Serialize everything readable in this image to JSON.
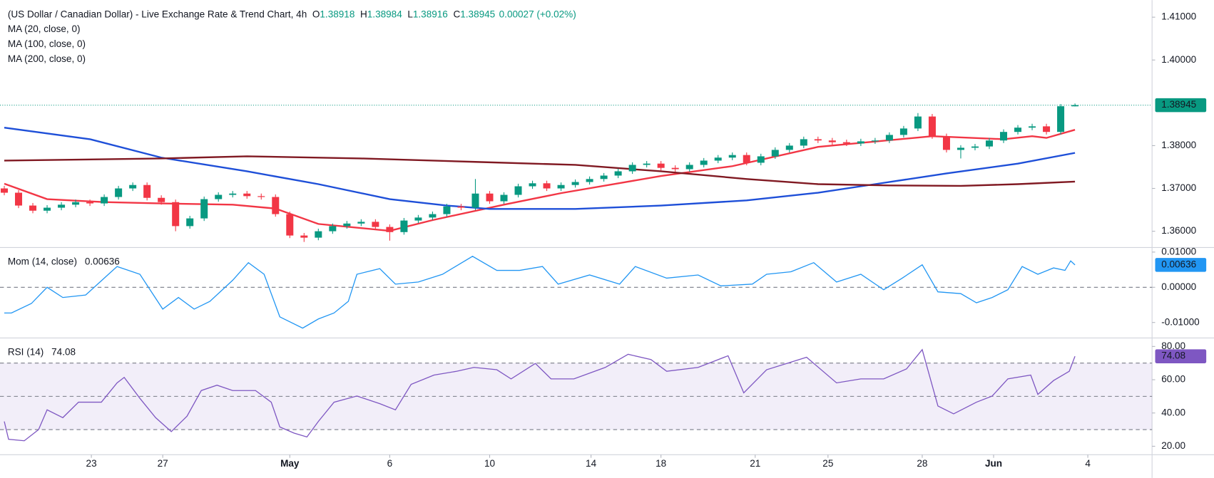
{
  "chart_data": [
    {
      "type": "candlestick",
      "title": "(US Dollar / Canadian Dollar) - Live Exchange Rate & Trend Chart, 4h",
      "ohlc_labels": [
        "O",
        "H",
        "L",
        "C"
      ],
      "change": "0.00027 (+0.02%)",
      "up_color": "#089981",
      "down_color": "#f23645",
      "xlim": [
        -0.3,
        80.4
      ],
      "xticks": [
        {
          "value": 6.1,
          "label": "23"
        },
        {
          "value": 11.1,
          "label": "27"
        },
        {
          "value": 20.0,
          "label": "May"
        },
        {
          "value": 27.0,
          "label": "6"
        },
        {
          "value": 34.0,
          "label": "10"
        },
        {
          "value": 41.1,
          "label": "14"
        },
        {
          "value": 46.0,
          "label": "18"
        },
        {
          "value": 52.6,
          "label": "21"
        },
        {
          "value": 57.7,
          "label": "25"
        },
        {
          "value": 64.3,
          "label": "28"
        },
        {
          "value": 69.3,
          "label": "Jun"
        },
        {
          "value": 75.9,
          "label": "4"
        }
      ],
      "ylim": [
        1.3562,
        1.414
      ],
      "yticks": [
        {
          "value": 1.41,
          "label": "1.41000"
        },
        {
          "value": 1.4,
          "label": "1.40000"
        },
        {
          "value": 1.38,
          "label": "1.38000"
        },
        {
          "value": 1.37,
          "label": "1.37000"
        },
        {
          "value": 1.36,
          "label": "1.36000"
        }
      ],
      "open": [
        1.37,
        1.369,
        1.366,
        1.3648,
        1.3655,
        1.3662,
        1.3668,
        1.3665,
        1.368,
        1.37,
        1.3708,
        1.3678,
        1.3668,
        1.3612,
        1.363,
        1.3675,
        1.3685,
        1.3688,
        1.3682,
        1.368,
        1.364,
        1.359,
        1.3585,
        1.36,
        1.3612,
        1.3618,
        1.3622,
        1.361,
        1.3598,
        1.3625,
        1.3632,
        1.364,
        1.3658,
        1.3655,
        1.3688,
        1.367,
        1.3685,
        1.3705,
        1.3712,
        1.37,
        1.3708,
        1.3715,
        1.3722,
        1.373,
        1.374,
        1.3755,
        1.3758,
        1.3748,
        1.3745,
        1.3755,
        1.3765,
        1.3772,
        1.3778,
        1.376,
        1.3775,
        1.379,
        1.38,
        1.3815,
        1.3812,
        1.3808,
        1.3805,
        1.381,
        1.3812,
        1.3825,
        1.384,
        1.3868,
        1.3822,
        1.379,
        1.3795,
        1.3798,
        1.3812,
        1.3832,
        1.3842,
        1.3845,
        1.3832,
        1.38918
      ],
      "high": [
        1.3706,
        1.3696,
        1.3666,
        1.3661,
        1.3668,
        1.3674,
        1.3674,
        1.3686,
        1.3706,
        1.3714,
        1.3714,
        1.3684,
        1.3674,
        1.3636,
        1.3681,
        1.3691,
        1.3694,
        1.3694,
        1.3688,
        1.3686,
        1.3646,
        1.3596,
        1.3606,
        1.3618,
        1.3624,
        1.3628,
        1.3628,
        1.3616,
        1.3631,
        1.3638,
        1.3646,
        1.3664,
        1.3664,
        1.3722,
        1.3694,
        1.3691,
        1.3711,
        1.3718,
        1.3718,
        1.3714,
        1.3721,
        1.3728,
        1.3736,
        1.3746,
        1.3761,
        1.3764,
        1.3764,
        1.3754,
        1.3761,
        1.3771,
        1.3778,
        1.3784,
        1.3784,
        1.3781,
        1.3796,
        1.3806,
        1.3821,
        1.3821,
        1.3818,
        1.3814,
        1.3816,
        1.3818,
        1.3831,
        1.3846,
        1.3876,
        1.3874,
        1.3828,
        1.3801,
        1.3804,
        1.3818,
        1.3838,
        1.3848,
        1.3851,
        1.3851,
        1.3897,
        1.38984
      ],
      "low": [
        1.3684,
        1.3654,
        1.3642,
        1.3642,
        1.3649,
        1.3656,
        1.3659,
        1.3659,
        1.3674,
        1.3694,
        1.3672,
        1.3662,
        1.36,
        1.3606,
        1.3624,
        1.3669,
        1.3679,
        1.3676,
        1.3674,
        1.3634,
        1.3584,
        1.3575,
        1.3579,
        1.3594,
        1.3606,
        1.3612,
        1.3604,
        1.3578,
        1.3592,
        1.3619,
        1.3626,
        1.3634,
        1.3649,
        1.3649,
        1.3664,
        1.3664,
        1.3679,
        1.3699,
        1.3694,
        1.3694,
        1.3702,
        1.3709,
        1.3716,
        1.3724,
        1.3734,
        1.3749,
        1.3742,
        1.3739,
        1.3739,
        1.3749,
        1.3759,
        1.3766,
        1.3754,
        1.3754,
        1.3769,
        1.3784,
        1.3794,
        1.3806,
        1.3802,
        1.3799,
        1.3799,
        1.3804,
        1.3806,
        1.3819,
        1.3834,
        1.3816,
        1.3784,
        1.377,
        1.3789,
        1.3792,
        1.3806,
        1.3826,
        1.3836,
        1.3826,
        1.3826,
        1.38916
      ],
      "close": [
        1.369,
        1.366,
        1.3648,
        1.3655,
        1.3662,
        1.3668,
        1.3665,
        1.368,
        1.37,
        1.3708,
        1.3678,
        1.3668,
        1.3612,
        1.363,
        1.3675,
        1.3685,
        1.3688,
        1.3682,
        1.368,
        1.364,
        1.359,
        1.3585,
        1.36,
        1.3612,
        1.3618,
        1.3622,
        1.361,
        1.3598,
        1.3625,
        1.3632,
        1.364,
        1.3658,
        1.3655,
        1.3688,
        1.367,
        1.3685,
        1.3705,
        1.3712,
        1.37,
        1.3708,
        1.3715,
        1.3722,
        1.373,
        1.374,
        1.3755,
        1.3758,
        1.3748,
        1.3745,
        1.3755,
        1.3765,
        1.3772,
        1.3778,
        1.376,
        1.3775,
        1.379,
        1.38,
        1.3815,
        1.3812,
        1.3808,
        1.3805,
        1.381,
        1.3812,
        1.3825,
        1.384,
        1.3868,
        1.3822,
        1.379,
        1.3795,
        1.3798,
        1.3812,
        1.3832,
        1.3842,
        1.3845,
        1.3832,
        1.3892,
        1.38945
      ],
      "series": [
        {
          "name": "MA (20, close, 0)",
          "color": "#f23645",
          "x": [
            0,
            3,
            7,
            11,
            16,
            19,
            22,
            27,
            30,
            35,
            39,
            46,
            51,
            57,
            65,
            70,
            72,
            73,
            75
          ],
          "values": [
            1.3711,
            1.3675,
            1.3668,
            1.3665,
            1.3662,
            1.3653,
            1.3617,
            1.3601,
            1.3626,
            1.3662,
            1.3689,
            1.3729,
            1.3752,
            1.3797,
            1.3822,
            1.3815,
            1.3822,
            1.3818,
            1.3837
          ]
        },
        {
          "name": "MA (100, close, 0)",
          "color": "#1e4fd8",
          "x": [
            0,
            6,
            11,
            17,
            22,
            27,
            31,
            34,
            40,
            46,
            52,
            57,
            61,
            66,
            71,
            75
          ],
          "values": [
            1.3842,
            1.3815,
            1.3772,
            1.374,
            1.371,
            1.3675,
            1.366,
            1.3652,
            1.3652,
            1.366,
            1.3672,
            1.369,
            1.371,
            1.3735,
            1.3758,
            1.3783
          ]
        },
        {
          "name": "MA (200, close, 0)",
          "color": "#801922",
          "x": [
            0,
            11,
            17,
            25,
            33,
            40,
            46,
            52,
            57,
            62,
            67,
            71,
            75
          ],
          "values": [
            1.3765,
            1.377,
            1.3775,
            1.377,
            1.3762,
            1.3755,
            1.374,
            1.3722,
            1.371,
            1.3707,
            1.3706,
            1.371,
            1.3716
          ]
        }
      ]
    },
    {
      "type": "line",
      "title": "Mom (14, close)",
      "color": "#2196f3",
      "ylim": [
        -0.0144,
        0.0113
      ],
      "yticks": [
        {
          "value": 0.01,
          "label": "0.01000"
        },
        {
          "value": 0,
          "label": "0.00000"
        },
        {
          "value": -0.01,
          "label": "-0.01000"
        }
      ],
      "levels": [
        0
      ],
      "x": [
        0,
        0.5,
        1.9,
        3.0,
        4.1,
        5.7,
        7.3,
        7.9,
        9.5,
        11.1,
        12.2,
        13.3,
        14.4,
        16.0,
        17.1,
        18.2,
        19.3,
        20.9,
        22.0,
        23.1,
        24.1,
        24.7,
        26.3,
        27.4,
        29.0,
        30.7,
        32.8,
        34.5,
        36.1,
        37.7,
        38.8,
        41.0,
        43.1,
        44.2,
        46.4,
        48.6,
        50.2,
        52.4,
        53.4,
        55.1,
        56.7,
        58.3,
        60.0,
        61.6,
        62.9,
        64.3,
        65.4,
        67.0,
        68.1,
        69.2,
        70.3,
        71.3,
        72.4,
        73.5,
        74.3,
        74.7,
        75
      ],
      "values": [
        -0.0073,
        -0.0073,
        -0.0046,
        0,
        -0.0029,
        -0.0022,
        0.0037,
        0.0059,
        0.0037,
        -0.0062,
        -0.0029,
        -0.0062,
        -0.004,
        0.002,
        0.007,
        0.0037,
        -0.0084,
        -0.0116,
        -0.009,
        -0.0073,
        -0.004,
        0.0037,
        0.0053,
        0.0009,
        0.0015,
        0.0037,
        0.0088,
        0.0048,
        0.0048,
        0.0059,
        0.0009,
        0.0035,
        0.0009,
        0.0059,
        0.0026,
        0.0035,
        0.0004,
        0.0009,
        0.0037,
        0.0044,
        0.007,
        0.0015,
        0.0037,
        -0.0007,
        0.0026,
        0.0064,
        -0.0013,
        -0.0018,
        -0.0044,
        -0.0029,
        -0.0007,
        0.0059,
        0.0037,
        0.0055,
        0.0048,
        0.0075,
        0.00636
      ]
    },
    {
      "type": "line",
      "title": "RSI (14)",
      "color": "#7e57c2",
      "ylim": [
        14.9,
        85.1
      ],
      "yticks": [
        {
          "value": 80,
          "label": "80.00"
        },
        {
          "value": 60,
          "label": "60.00"
        },
        {
          "value": 40,
          "label": "40.00"
        },
        {
          "value": 20,
          "label": "20.00"
        }
      ],
      "levels": [
        70,
        50,
        30
      ],
      "band": [
        30,
        70
      ],
      "x": [
        0,
        0.3,
        1.4,
        2.4,
        3.0,
        4.1,
        5.2,
        6.8,
        7.9,
        8.4,
        9.5,
        10.6,
        11.7,
        12.8,
        13.8,
        14.9,
        16.0,
        17.6,
        18.7,
        19.3,
        20.3,
        21.2,
        22.0,
        23.1,
        24.7,
        26.3,
        27.4,
        28.5,
        30.1,
        31.7,
        32.9,
        34.5,
        35.5,
        37.2,
        38.3,
        39.9,
        42.1,
        43.7,
        45.3,
        46.4,
        48.6,
        50.7,
        51.8,
        53.4,
        56.2,
        58.3,
        60.0,
        61.6,
        63.2,
        64.3,
        65.4,
        66.5,
        68.1,
        69.2,
        70.3,
        71.9,
        72.4,
        73.5,
        74.6,
        75
      ],
      "values": [
        34.9,
        24.2,
        23.3,
        30.0,
        41.9,
        37.2,
        46.5,
        46.5,
        58.1,
        61.4,
        48.8,
        37.2,
        28.8,
        38.1,
        53.5,
        56.7,
        53.5,
        53.5,
        46.5,
        31.6,
        27.9,
        25.6,
        34.9,
        46.5,
        50.2,
        45.6,
        41.9,
        57.2,
        62.8,
        65.1,
        67.4,
        66.0,
        60.5,
        69.8,
        60.5,
        60.5,
        67.4,
        75.3,
        72.1,
        65.1,
        67.4,
        74.4,
        52.1,
        66.0,
        73.5,
        58.1,
        60.5,
        60.5,
        66.5,
        78.1,
        44.2,
        39.5,
        46.5,
        50.2,
        60.5,
        62.8,
        51.2,
        59.5,
        65.1,
        74.08
      ]
    }
  ]
}
